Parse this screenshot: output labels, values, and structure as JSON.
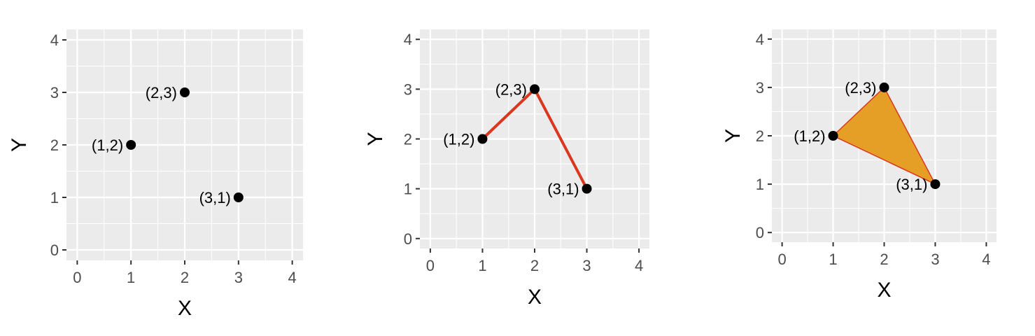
{
  "chart_data": [
    {
      "type": "scatter",
      "panel": "points",
      "xlabel": "X",
      "ylabel": "Y",
      "xlim": [
        0,
        4
      ],
      "ylim": [
        0,
        4
      ],
      "x_ticks": [
        0,
        1,
        2,
        3,
        4
      ],
      "y_ticks": [
        0,
        1,
        2,
        3,
        4
      ],
      "grid": true,
      "points": [
        {
          "x": 1,
          "y": 2,
          "label": "(1,2)"
        },
        {
          "x": 2,
          "y": 3,
          "label": "(2,3)"
        },
        {
          "x": 3,
          "y": 1,
          "label": "(3,1)"
        }
      ],
      "colors": {
        "point": "#000000",
        "panel_bg": "#ebebeb",
        "grid": "#ffffff"
      }
    },
    {
      "type": "line",
      "panel": "path",
      "xlabel": "X",
      "ylabel": "Y",
      "xlim": [
        0,
        4
      ],
      "ylim": [
        0,
        4
      ],
      "x_ticks": [
        0,
        1,
        2,
        3,
        4
      ],
      "y_ticks": [
        0,
        1,
        2,
        3,
        4
      ],
      "grid": true,
      "points": [
        {
          "x": 1,
          "y": 2,
          "label": "(1,2)"
        },
        {
          "x": 2,
          "y": 3,
          "label": "(2,3)"
        },
        {
          "x": 3,
          "y": 1,
          "label": "(3,1)"
        }
      ],
      "colors": {
        "point": "#000000",
        "line": "#d9381e",
        "panel_bg": "#ebebeb",
        "grid": "#ffffff"
      }
    },
    {
      "type": "area",
      "panel": "polygon",
      "xlabel": "X",
      "ylabel": "Y",
      "xlim": [
        0,
        4
      ],
      "ylim": [
        0,
        4
      ],
      "x_ticks": [
        0,
        1,
        2,
        3,
        4
      ],
      "y_ticks": [
        0,
        1,
        2,
        3,
        4
      ],
      "grid": true,
      "points": [
        {
          "x": 1,
          "y": 2,
          "label": "(1,2)"
        },
        {
          "x": 2,
          "y": 3,
          "label": "(2,3)"
        },
        {
          "x": 3,
          "y": 1,
          "label": "(3,1)"
        }
      ],
      "colors": {
        "point": "#000000",
        "fill": "#e69f26",
        "outline": "#d9381e",
        "panel_bg": "#ebebeb",
        "grid": "#ffffff"
      }
    }
  ]
}
